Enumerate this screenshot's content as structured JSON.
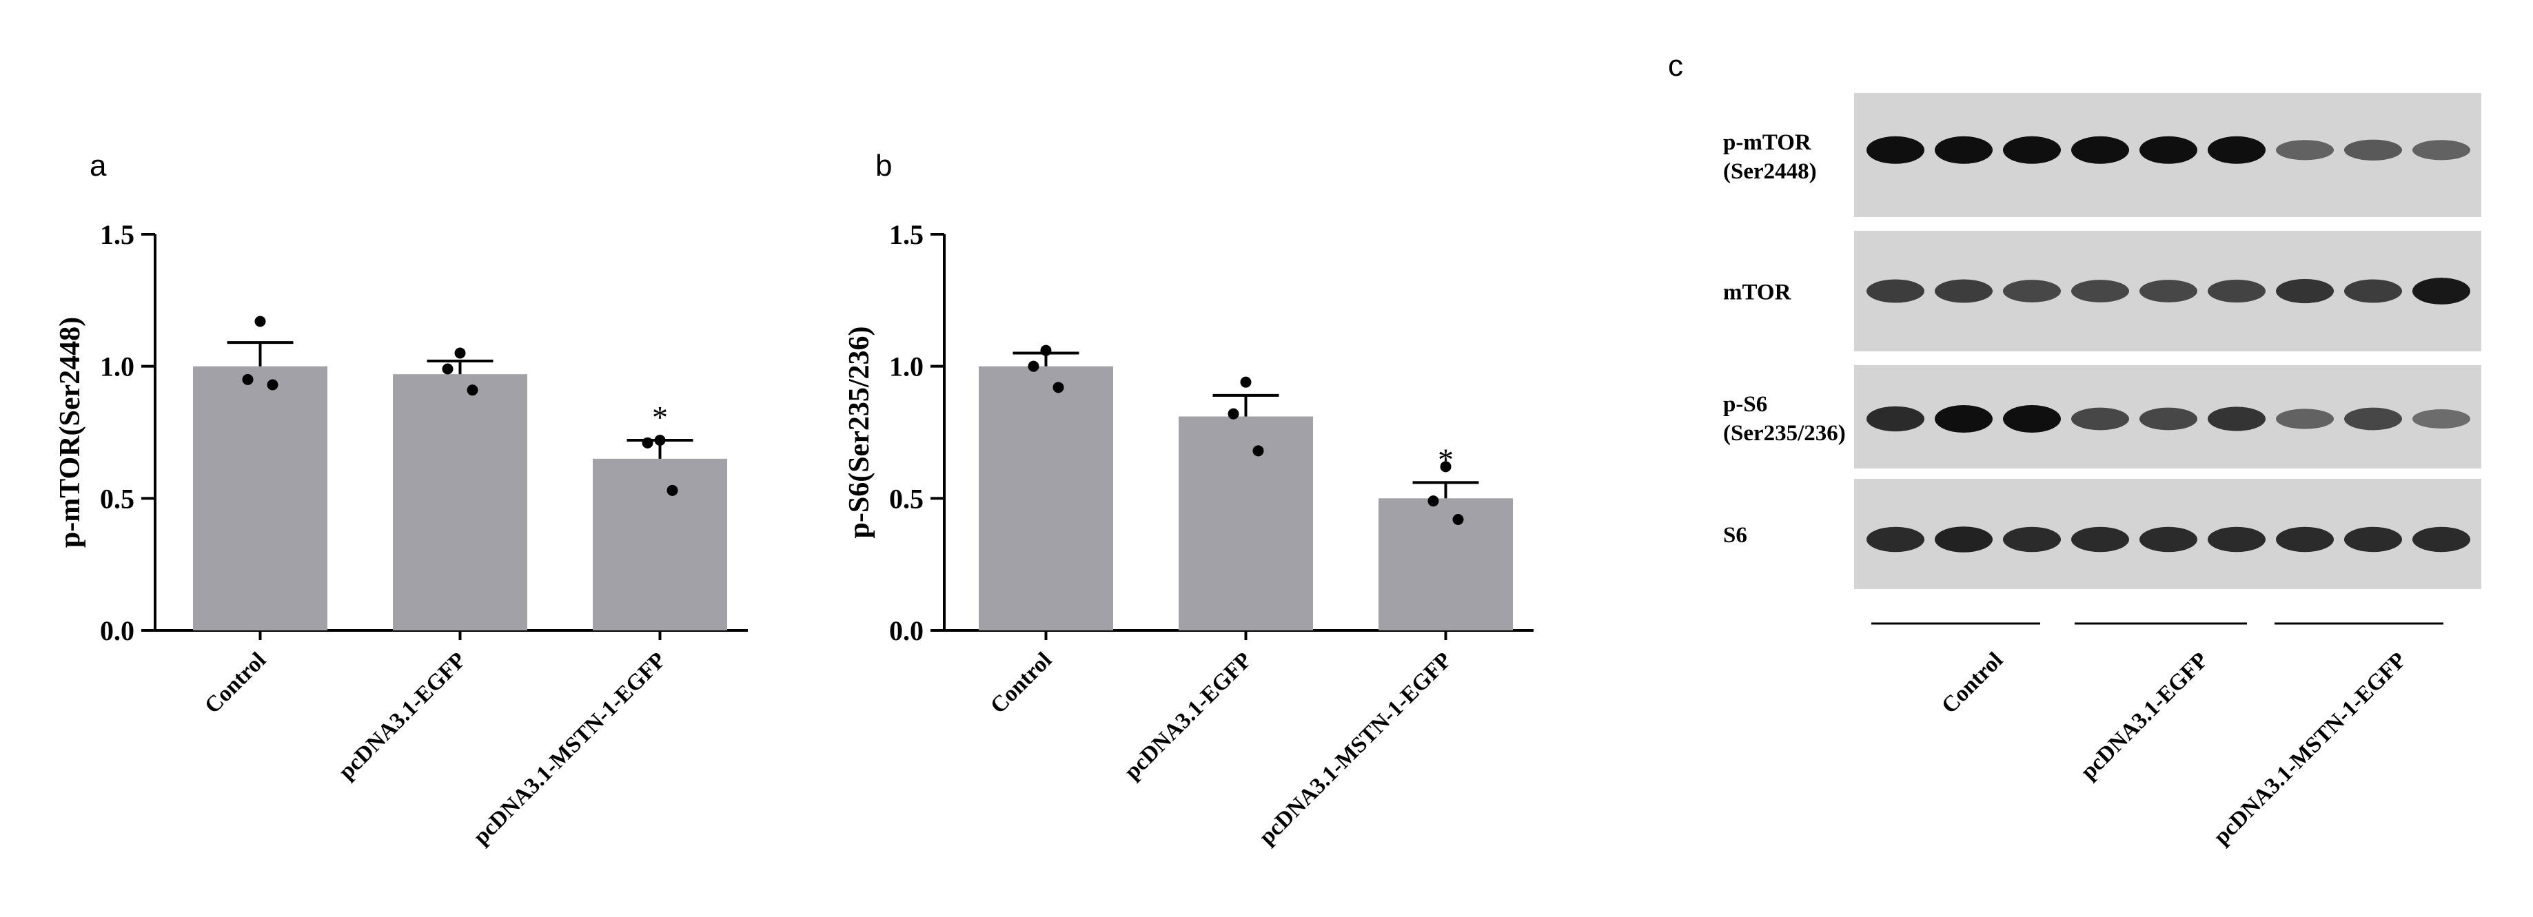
{
  "chart_data": [
    {
      "panel": "a",
      "type": "bar",
      "ylabel": "p-mTOR(Ser2448)",
      "ylim": [
        0,
        1.5
      ],
      "yticks": [
        "0.0",
        "0.5",
        "1.0",
        "1.5"
      ],
      "categories": [
        "Control",
        "pcDNA3.1-EGFP",
        "pcDNA3.1-MSTN-1-EGFP"
      ],
      "values": [
        1.0,
        0.97,
        0.65
      ],
      "error_upper": [
        1.09,
        1.02,
        0.72
      ],
      "points": [
        [
          1.17,
          0.95,
          0.93
        ],
        [
          1.05,
          0.99,
          0.91
        ],
        [
          0.72,
          0.71,
          0.53
        ]
      ],
      "significance": [
        "",
        "",
        "*"
      ],
      "bar_color": "#a2a1a7"
    },
    {
      "panel": "b",
      "type": "bar",
      "ylabel": "p-S6(Ser235/236)",
      "ylim": [
        0,
        1.5
      ],
      "yticks": [
        "0.0",
        "0.5",
        "1.0",
        "1.5"
      ],
      "categories": [
        "Control",
        "pcDNA3.1-EGFP",
        "pcDNA3.1-MSTN-1-EGFP"
      ],
      "values": [
        1.0,
        0.81,
        0.5
      ],
      "error_upper": [
        1.05,
        0.89,
        0.56
      ],
      "points": [
        [
          1.06,
          1.0,
          0.92
        ],
        [
          0.94,
          0.82,
          0.68
        ],
        [
          0.62,
          0.49,
          0.42
        ]
      ],
      "significance": [
        "",
        "",
        "*"
      ],
      "bar_color": "#a2a1a7"
    }
  ],
  "blot": {
    "panel": "c",
    "rows": [
      {
        "label_lines": [
          "p-mTOR",
          "(Ser2448)"
        ],
        "intensity": [
          1.0,
          1.0,
          1.0,
          1.0,
          1.0,
          1.0,
          0.55,
          0.6,
          0.55
        ]
      },
      {
        "label_lines": [
          "mTOR"
        ],
        "intensity": [
          0.75,
          0.75,
          0.7,
          0.7,
          0.7,
          0.72,
          0.8,
          0.75,
          0.95
        ]
      },
      {
        "label_lines": [
          "p-S6",
          "(Ser235/236)"
        ],
        "intensity": [
          0.85,
          1.0,
          1.0,
          0.7,
          0.7,
          0.8,
          0.55,
          0.7,
          0.5
        ]
      },
      {
        "label_lines": [
          "S6"
        ],
        "intensity": [
          0.85,
          0.9,
          0.85,
          0.85,
          0.85,
          0.85,
          0.85,
          0.85,
          0.85
        ]
      }
    ],
    "groups": [
      "Control",
      "pcDNA3.1-EGFP",
      "pcDNA3.1-MSTN-1-EGFP"
    ]
  }
}
